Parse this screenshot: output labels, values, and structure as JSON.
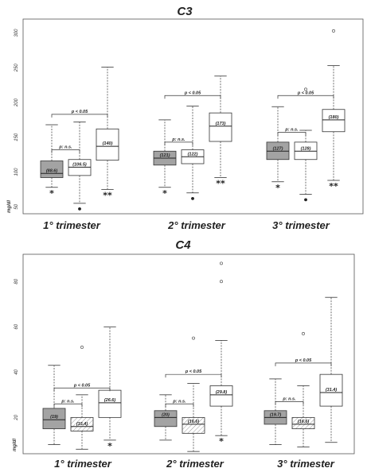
{
  "chart_data": [
    {
      "type": "box",
      "title": "C3",
      "ylabel": "mg/dl",
      "ylim": [
        40,
        320
      ],
      "yticks": [
        50,
        100,
        150,
        200,
        250,
        300
      ],
      "categories": [
        "1° trimester",
        "2° trimester",
        "3° trimester"
      ],
      "boxes": [
        {
          "group": "1° trimester",
          "fill": "gray",
          "whislo": 78,
          "q1": 92,
          "median": 98,
          "q3": 116,
          "whishi": 168,
          "label": "(88.6)",
          "outliers": [],
          "marker": "*"
        },
        {
          "group": "1° trimester",
          "fill": "white",
          "whislo": 55,
          "q1": 95,
          "median": 107,
          "q3": 118,
          "whishi": 172,
          "label": "(106.5)",
          "outliers": [],
          "marker": "•"
        },
        {
          "group": "1° trimester",
          "fill": "white",
          "whislo": 75,
          "q1": 117,
          "median": 137,
          "q3": 162,
          "whishi": 251,
          "label": "(140)",
          "outliers": [],
          "marker": "**"
        },
        {
          "group": "2° trimester",
          "fill": "gray",
          "whislo": 78,
          "q1": 110,
          "median": 120,
          "q3": 130,
          "whishi": 175,
          "label": "(121)",
          "outliers": [],
          "marker": "*"
        },
        {
          "group": "2° trimester",
          "fill": "white",
          "whislo": 70,
          "q1": 112,
          "median": 122,
          "q3": 132,
          "whishi": 195,
          "label": "(122)",
          "outliers": [],
          "marker": "•"
        },
        {
          "group": "2° trimester",
          "fill": "white",
          "whislo": 92,
          "q1": 144,
          "median": 166,
          "q3": 185,
          "whishi": 238,
          "label": "(173)",
          "outliers": [],
          "marker": "**"
        },
        {
          "group": "3° trimester",
          "fill": "gray",
          "whislo": 86,
          "q1": 118,
          "median": 130,
          "q3": 143,
          "whishi": 194,
          "label": "(127)",
          "outliers": [],
          "marker": "*"
        },
        {
          "group": "3° trimester",
          "fill": "white",
          "whislo": 68,
          "q1": 118,
          "median": 130,
          "q3": 143,
          "whishi": 160,
          "label": "(128)",
          "outliers": [
            219
          ],
          "marker": "•"
        },
        {
          "group": "3° trimester",
          "fill": "white",
          "whislo": 88,
          "q1": 158,
          "median": 175,
          "q3": 190,
          "whishi": 253,
          "label": "(180)",
          "outliers": [
            303
          ],
          "marker": "**"
        }
      ],
      "annotations": [
        {
          "group": "1° trimester",
          "from": 0,
          "to": 2,
          "y": 183,
          "text": "p < 0.05"
        },
        {
          "group": "1° trimester",
          "from": 0,
          "to": 1,
          "y": 132,
          "text": "p: n.s."
        },
        {
          "group": "2° trimester",
          "from": 0,
          "to": 2,
          "y": 210,
          "text": "p < 0.05"
        },
        {
          "group": "2° trimester",
          "from": 0,
          "to": 1,
          "y": 143,
          "text": "p: n.s."
        },
        {
          "group": "3° trimester",
          "from": 0,
          "to": 2,
          "y": 210,
          "text": "p < 0.05"
        },
        {
          "group": "3° trimester",
          "from": 0,
          "to": 1,
          "y": 157,
          "text": "p: n.s."
        }
      ]
    },
    {
      "type": "box",
      "title": "C4",
      "ylabel": "mg/dl",
      "ylim": [
        4,
        92
      ],
      "yticks": [
        20,
        40,
        60,
        80
      ],
      "categories": [
        "1° trimester",
        "2° trimester",
        "3° trimester"
      ],
      "boxes": [
        {
          "group": "1° trimester",
          "fill": "gray",
          "whislo": 8,
          "q1": 15,
          "median": 19,
          "q3": 24,
          "whishi": 43,
          "label": "(19)",
          "outliers": [],
          "marker": ""
        },
        {
          "group": "1° trimester",
          "fill": "hatch",
          "whislo": 6,
          "q1": 14,
          "median": 16,
          "q3": 20,
          "whishi": 30,
          "label": "(15.4)",
          "outliers": [
            51
          ],
          "marker": ""
        },
        {
          "group": "1° trimester",
          "fill": "white",
          "whislo": 10,
          "q1": 20,
          "median": 26.5,
          "q3": 32,
          "whishi": 60,
          "label": "(26.6)",
          "outliers": [],
          "marker": "*"
        },
        {
          "group": "2° trimester",
          "fill": "gray",
          "whislo": 10,
          "q1": 16,
          "median": 20,
          "q3": 23,
          "whishi": 30,
          "label": "(20)",
          "outliers": [],
          "marker": ""
        },
        {
          "group": "2° trimester",
          "fill": "hatch",
          "whislo": 5,
          "q1": 13,
          "median": 17,
          "q3": 20,
          "whishi": 35,
          "label": "(16.6)",
          "outliers": [
            55
          ],
          "marker": ""
        },
        {
          "group": "2° trimester",
          "fill": "white",
          "whislo": 12,
          "q1": 25,
          "median": 30,
          "q3": 34,
          "whishi": 54,
          "label": "(29.8)",
          "outliers": [
            80,
            88
          ],
          "marker": "*"
        },
        {
          "group": "3° trimester",
          "fill": "gray",
          "whislo": 8,
          "q1": 17,
          "median": 20,
          "q3": 23,
          "whishi": 37,
          "label": "(19.7)",
          "outliers": [],
          "marker": ""
        },
        {
          "group": "3° trimester",
          "fill": "hatch",
          "whislo": 7,
          "q1": 15,
          "median": 17,
          "q3": 20,
          "whishi": 34,
          "label": "(16.6)",
          "outliers": [
            57
          ],
          "marker": ""
        },
        {
          "group": "3° trimester",
          "fill": "white",
          "whislo": 9,
          "q1": 25,
          "median": 31,
          "q3": 39,
          "whishi": 73,
          "label": "(31.4)",
          "outliers": [],
          "marker": ""
        }
      ],
      "annotations": [
        {
          "group": "1° trimester",
          "from": 0,
          "to": 2,
          "y": 33,
          "text": "p < 0.05"
        },
        {
          "group": "1° trimester",
          "from": 0,
          "to": 1,
          "y": 26,
          "text": "p: n.s."
        },
        {
          "group": "2° trimester",
          "from": 0,
          "to": 2,
          "y": 39,
          "text": "p < 0.05"
        },
        {
          "group": "2° trimester",
          "from": 0,
          "to": 1,
          "y": 26,
          "text": "p: n.s."
        },
        {
          "group": "3° trimester",
          "from": 0,
          "to": 2,
          "y": 44,
          "text": "p < 0.05"
        },
        {
          "group": "3° trimester",
          "from": 0,
          "to": 1,
          "y": 27,
          "text": "p: n.s."
        }
      ]
    }
  ]
}
